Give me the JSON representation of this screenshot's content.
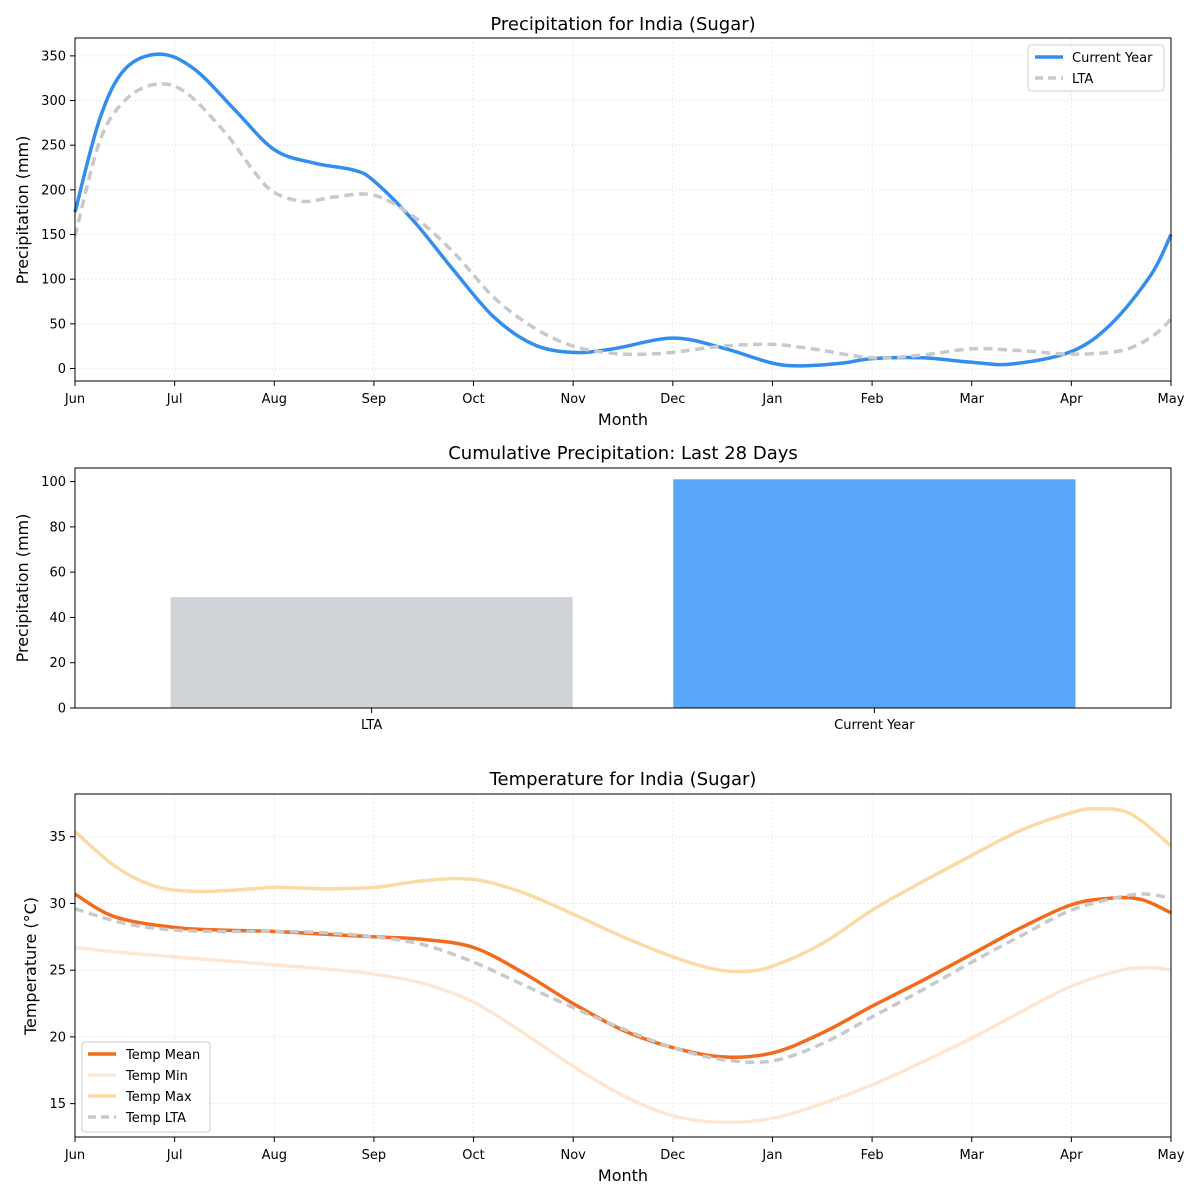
{
  "chart_data": [
    {
      "type": "line",
      "title": "Precipitation for India (Sugar)",
      "xlabel": "Month",
      "ylabel": "Precipitation (mm)",
      "x_ticks": [
        "Jun",
        "Jul",
        "Aug",
        "Sep",
        "Oct",
        "Nov",
        "Dec",
        "Jan",
        "Feb",
        "Mar",
        "Apr",
        "May"
      ],
      "xlim": [
        0,
        11
      ],
      "ylim": [
        -14,
        370
      ],
      "y_ticks": [
        0,
        50,
        100,
        150,
        200,
        250,
        300,
        350
      ],
      "grid": true,
      "legend": "top-right",
      "series": [
        {
          "name": "Current Year",
          "color": "#338ded",
          "style": "solid",
          "x": [
            0,
            0.25,
            0.5,
            0.85,
            1.2,
            1.6,
            2,
            2.4,
            2.8,
            3,
            3.4,
            3.8,
            4.2,
            4.6,
            5,
            5.4,
            6,
            6.5,
            7,
            7.3,
            7.7,
            8,
            8.5,
            9,
            9.4,
            10,
            10.4,
            10.8,
            11
          ],
          "values": [
            175,
            280,
            335,
            352,
            335,
            290,
            245,
            230,
            222,
            210,
            165,
            110,
            58,
            27,
            18,
            22,
            34,
            23,
            6,
            3,
            6,
            11,
            12,
            7,
            5,
            19,
            50,
            105,
            150
          ]
        },
        {
          "name": "LTA",
          "color": "#c8c9cb",
          "style": "dashed",
          "x": [
            0,
            0.25,
            0.5,
            0.8,
            1.1,
            1.5,
            1.8,
            2,
            2.3,
            2.6,
            3,
            3.4,
            3.8,
            4.2,
            4.6,
            5,
            5.4,
            5.7,
            6,
            6.5,
            7,
            7.4,
            8,
            8.5,
            9,
            9.5,
            10,
            10.5,
            10.8,
            11
          ],
          "values": [
            148,
            255,
            300,
            318,
            310,
            265,
            220,
            197,
            187,
            192,
            194,
            170,
            130,
            80,
            46,
            25,
            17,
            16,
            18,
            25,
            27,
            22,
            12,
            15,
            22,
            20,
            16,
            20,
            35,
            55
          ]
        }
      ]
    },
    {
      "type": "bar",
      "title": "Cumulative Precipitation: Last 28 Days",
      "xlabel": "",
      "ylabel": "Precipitation (mm)",
      "categories": [
        "LTA",
        "Current Year"
      ],
      "values": [
        49,
        101
      ],
      "colors": [
        "#d0d4d8",
        "#5aa6f9"
      ],
      "ylim": [
        0,
        106
      ],
      "y_ticks": [
        0,
        20,
        40,
        60,
        80,
        100
      ],
      "grid": false
    },
    {
      "type": "line",
      "title": "Temperature for India (Sugar)",
      "xlabel": "Month",
      "ylabel": "Temperature (°C)",
      "x_ticks": [
        "Jun",
        "Jul",
        "Aug",
        "Sep",
        "Oct",
        "Nov",
        "Dec",
        "Jan",
        "Feb",
        "Mar",
        "Apr",
        "May"
      ],
      "xlim": [
        0,
        11
      ],
      "ylim": [
        12.5,
        38.2
      ],
      "y_ticks": [
        15,
        20,
        25,
        30,
        35
      ],
      "grid": true,
      "legend": "bottom-left",
      "series": [
        {
          "name": "Temp Mean",
          "color": "#f26a1b",
          "style": "solid",
          "x": [
            0,
            0.4,
            1,
            1.5,
            2,
            2.5,
            3,
            3.5,
            4,
            4.5,
            5,
            5.5,
            6,
            6.5,
            7,
            7.5,
            8,
            8.5,
            9,
            9.5,
            10,
            10.4,
            10.7,
            11
          ],
          "values": [
            30.7,
            29.0,
            28.2,
            28.0,
            27.9,
            27.7,
            27.5,
            27.3,
            26.7,
            24.8,
            22.5,
            20.5,
            19.2,
            18.5,
            18.8,
            20.3,
            22.3,
            24.2,
            26.2,
            28.2,
            29.9,
            30.4,
            30.3,
            29.3
          ]
        },
        {
          "name": "Temp Min",
          "color": "#fde7d2",
          "style": "solid",
          "x": [
            0,
            0.5,
            1,
            1.5,
            2,
            2.5,
            3,
            3.5,
            4,
            4.5,
            5,
            5.5,
            6,
            6.5,
            7,
            7.5,
            8,
            8.5,
            9,
            9.5,
            10,
            10.5,
            10.8,
            11
          ],
          "values": [
            26.7,
            26.3,
            26.0,
            25.7,
            25.4,
            25.1,
            24.7,
            24.0,
            22.6,
            20.3,
            17.8,
            15.6,
            14.1,
            13.6,
            13.9,
            15.0,
            16.4,
            18.1,
            19.9,
            21.9,
            23.8,
            25.0,
            25.2,
            25.0
          ]
        },
        {
          "name": "Temp Max",
          "color": "#fadaa5",
          "style": "solid",
          "x": [
            0,
            0.4,
            0.8,
            1.2,
            1.6,
            2,
            2.5,
            3,
            3.5,
            4,
            4.5,
            5,
            5.5,
            6,
            6.4,
            6.7,
            7,
            7.5,
            8,
            8.5,
            9,
            9.5,
            10,
            10.25,
            10.6,
            11
          ],
          "values": [
            35.4,
            32.8,
            31.3,
            30.9,
            31.0,
            31.2,
            31.1,
            31.2,
            31.7,
            31.8,
            30.8,
            29.2,
            27.5,
            26.0,
            25.1,
            24.9,
            25.3,
            27.0,
            29.5,
            31.6,
            33.6,
            35.5,
            36.8,
            37.1,
            36.7,
            34.3
          ]
        },
        {
          "name": "Temp LTA",
          "color": "#c8c9cb",
          "style": "dashed",
          "x": [
            0,
            0.5,
            1,
            1.5,
            2,
            2.5,
            3,
            3.5,
            4,
            4.5,
            5,
            5.5,
            6,
            6.5,
            7,
            7.5,
            8,
            8.5,
            9,
            9.5,
            10,
            10.5,
            10.75,
            11
          ],
          "values": [
            29.6,
            28.5,
            28.0,
            27.9,
            27.9,
            27.8,
            27.5,
            26.9,
            25.6,
            23.9,
            22.2,
            20.6,
            19.2,
            18.3,
            18.2,
            19.5,
            21.5,
            23.5,
            25.6,
            27.6,
            29.5,
            30.5,
            30.7,
            30.4
          ]
        }
      ]
    }
  ]
}
